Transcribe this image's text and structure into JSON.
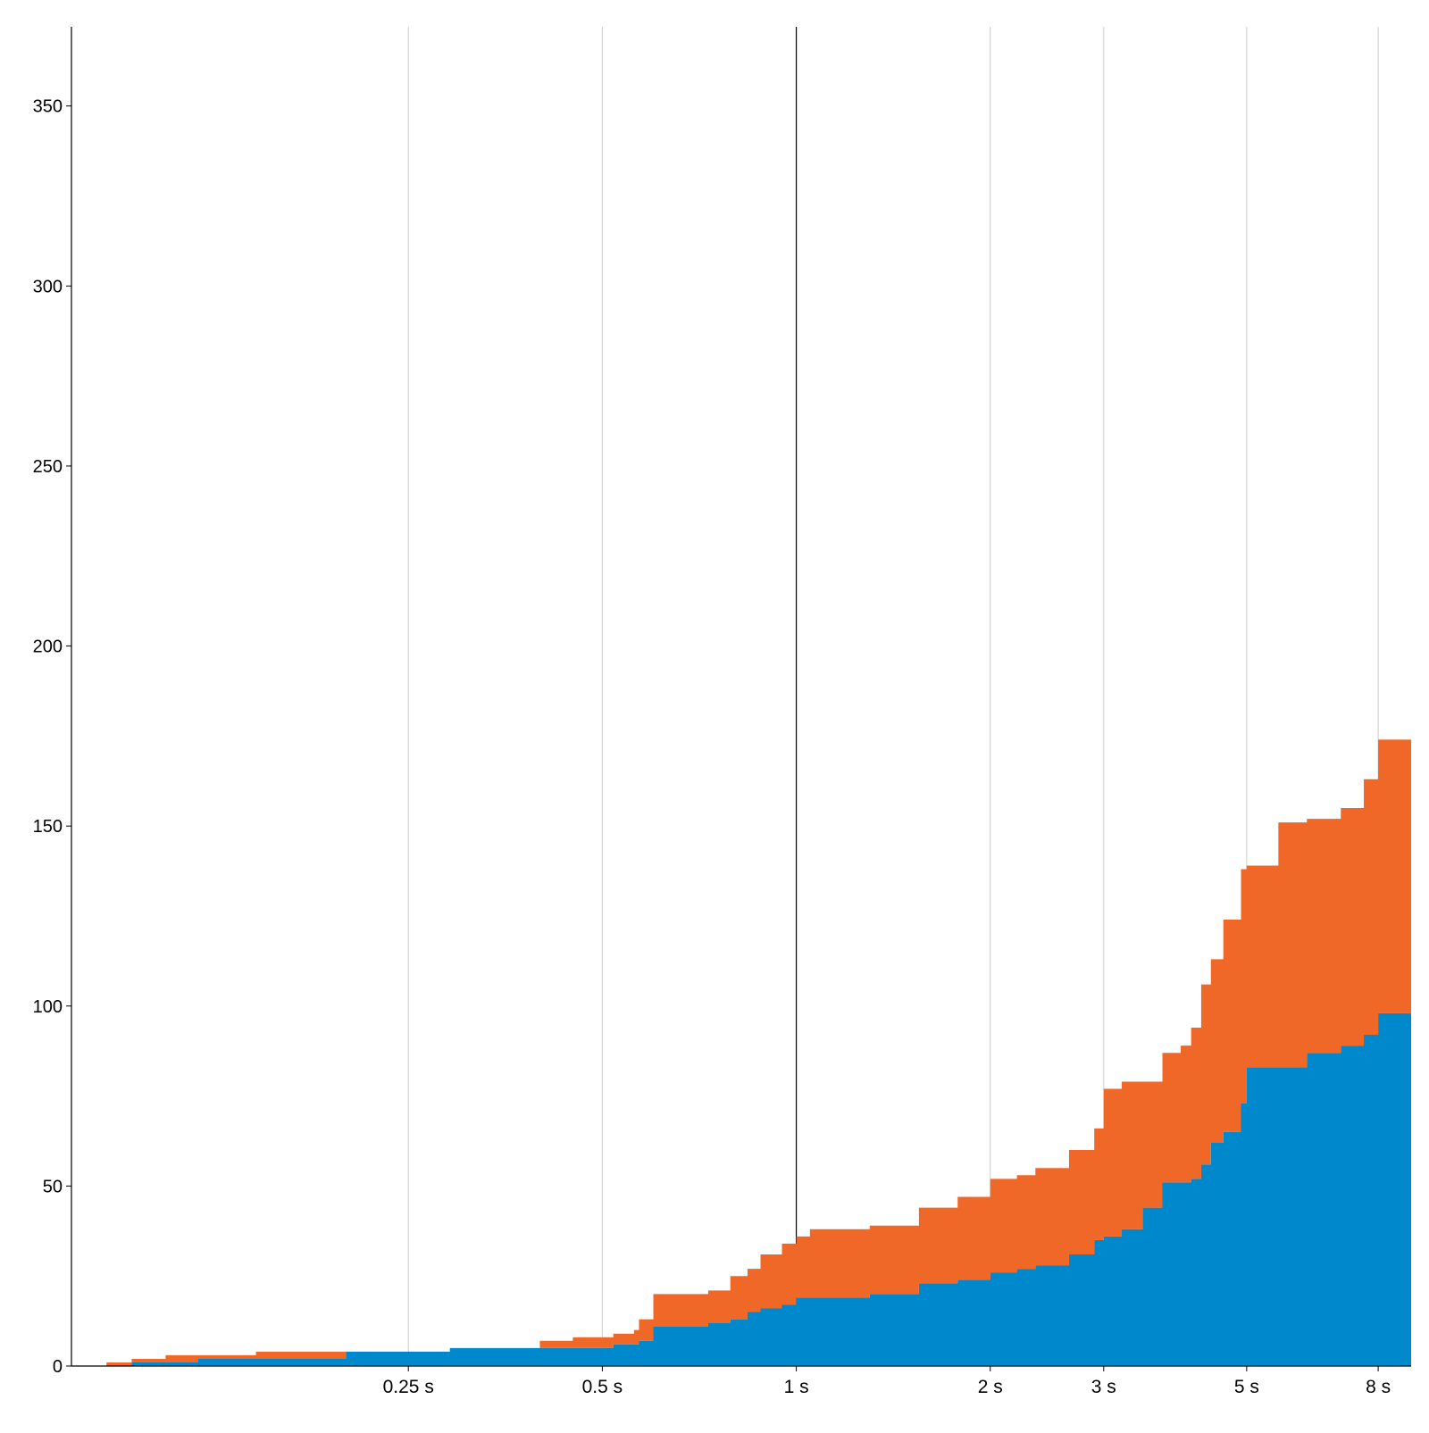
{
  "chart_data": {
    "type": "area",
    "stacked": true,
    "step": true,
    "x_scale": "log",
    "x_unit": "s",
    "xlim": [
      0.075,
      9.0
    ],
    "ylim": [
      0,
      372
    ],
    "grid": "vertical lines at x ticks; 1 s line emphasized",
    "title": "",
    "xlabel": "",
    "ylabel": "",
    "y_ticks": [
      0,
      50,
      100,
      150,
      200,
      250,
      300,
      350
    ],
    "x_ticks": [
      {
        "value": 0.25,
        "label": "0.25 s"
      },
      {
        "value": 0.5,
        "label": "0.5 s"
      },
      {
        "value": 1,
        "label": "1 s"
      },
      {
        "value": 2,
        "label": "2 s"
      },
      {
        "value": 3,
        "label": "3 s"
      },
      {
        "value": 5,
        "label": "5 s"
      },
      {
        "value": 8,
        "label": "8 s"
      }
    ],
    "emphasized_x": 1,
    "x": [
      0.085,
      0.093,
      0.105,
      0.118,
      0.145,
      0.2,
      0.29,
      0.4,
      0.45,
      0.52,
      0.56,
      0.57,
      0.6,
      0.73,
      0.79,
      0.84,
      0.88,
      0.95,
      1.0,
      1.05,
      1.3,
      1.55,
      1.78,
      2.0,
      2.2,
      2.35,
      2.65,
      2.9,
      3.0,
      3.2,
      3.45,
      3.7,
      3.95,
      4.1,
      4.25,
      4.4,
      4.6,
      4.9,
      5.0,
      5.6,
      6.2,
      7.0,
      7.6,
      8.0,
      9.0
    ],
    "series": [
      {
        "color": "#0088cc",
        "values": [
          0,
          1,
          1,
          2,
          2,
          4,
          5,
          5,
          5,
          6,
          6,
          7,
          11,
          12,
          13,
          15,
          16,
          17,
          19,
          19,
          20,
          23,
          24,
          26,
          27,
          28,
          31,
          35,
          36,
          38,
          44,
          51,
          51,
          52,
          56,
          62,
          65,
          73,
          83,
          83,
          87,
          89,
          92,
          98,
          98
        ]
      },
      {
        "color": "#f06828",
        "values": [
          1,
          1,
          2,
          1,
          2,
          0,
          0,
          2,
          3,
          3,
          4,
          6,
          9,
          9,
          12,
          12,
          15,
          17,
          17,
          19,
          19,
          21,
          23,
          26,
          26,
          27,
          29,
          31,
          41,
          41,
          35,
          36,
          38,
          42,
          50,
          51,
          59,
          65,
          56,
          68,
          65,
          66,
          71,
          76,
          76
        ]
      }
    ]
  }
}
